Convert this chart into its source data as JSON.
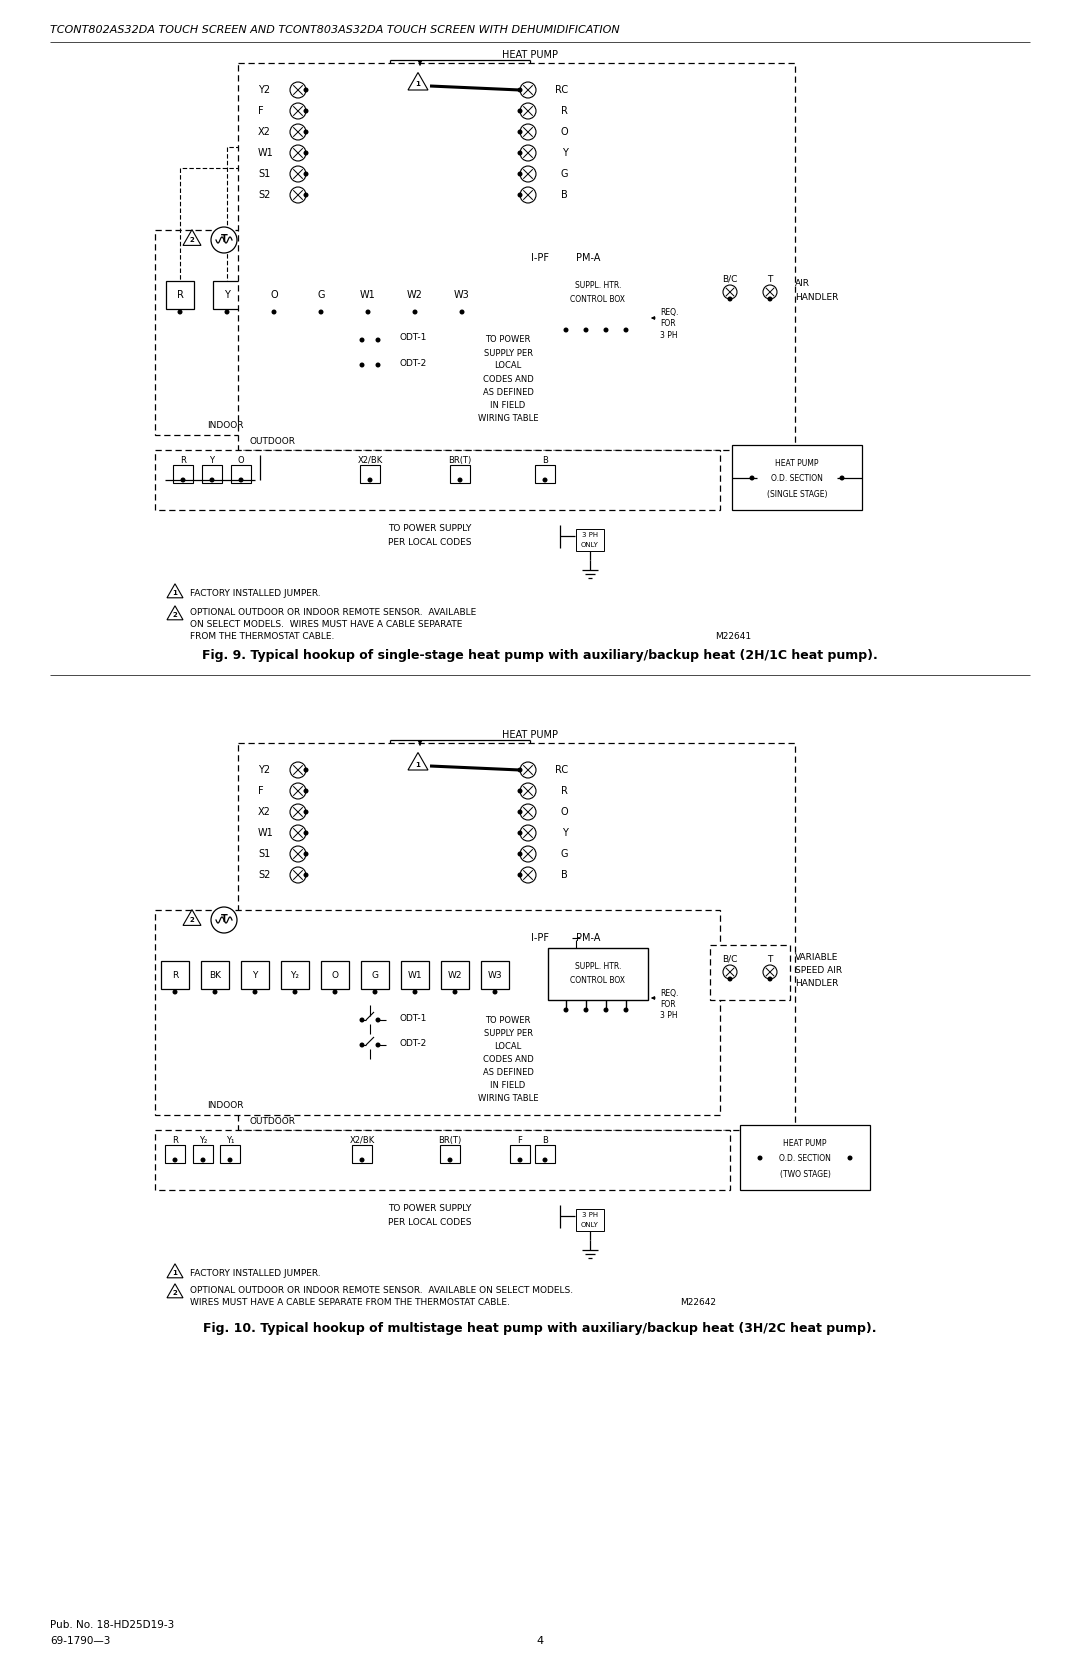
{
  "header": "TCONT802AS32DA TOUCH SCREEN AND TCONT803AS32DA TOUCH SCREEN WITH DEHUMIDIFICATION",
  "fig1_caption": "Fig. 9. Typical hookup of single-stage heat pump with auxiliary/backup heat (2H/1C heat pump).",
  "fig2_caption": "Fig. 10. Typical hookup of multistage heat pump with auxiliary/backup heat (3H/2C heat pump).",
  "footer_left1": "Pub. No. 18-HD25D19-3",
  "footer_left2": "69-1790—3",
  "footer_center": "4",
  "m22641": "M22641",
  "m22642": "M22642"
}
